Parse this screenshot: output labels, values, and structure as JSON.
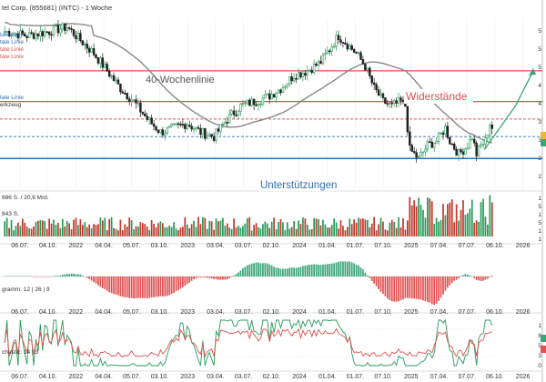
{
  "header": {
    "title": "tel Corp. (855681) (INTC) - 1 Woche"
  },
  "legend": {
    "items": [
      {
        "label": "tale Linie",
        "color": "#2f6fb5"
      },
      {
        "label": "tale Linie",
        "color": "#2f6fb5"
      },
      {
        "label": "tale Linie",
        "color": "#e05050"
      },
      {
        "label": "tale Linie",
        "color": "#e05050"
      }
    ],
    "lower_items": [
      {
        "label": "tale Linie",
        "color": "#2f6fb5"
      },
      {
        "label": "erkzeug",
        "color": "#333333"
      }
    ]
  },
  "chart_data": {
    "type": "candlestick",
    "annotations": {
      "ma_label": "40-Wochenlinie",
      "resistance_label": "Widerstände",
      "support_label": "Unterstützungen"
    },
    "x_ticks": [
      "06.07.",
      "04.10.",
      "2022",
      "04.04.",
      "05.07.",
      "03.10.",
      "2023",
      "03.04.",
      "03.07.",
      "02.10.",
      "2024",
      "01.04.",
      "01.07.",
      "07.10.",
      "2025",
      "07.04.",
      "07.07.",
      "06.10.",
      "2026"
    ],
    "bottom_ticks": [
      "06.07.",
      "04.10.",
      "2022",
      "04.04.",
      "05.07.",
      "03.10.",
      "2023",
      "03.04.",
      "03.07.",
      "02.10.",
      "2024",
      "01.04.",
      "01.07.",
      "07.10.",
      "2025",
      "07.04.",
      "07.07.",
      "06.10.",
      "2026"
    ],
    "y_range": [
      17,
      56
    ],
    "levels": {
      "resistance_top": 44,
      "resistance_mid": 37,
      "dashed_red": 33,
      "dashed_blue": 29,
      "support": 24
    },
    "projection": [
      [
        54,
        26
      ],
      [
        57.5,
        36
      ],
      [
        59.5,
        44
      ]
    ],
    "ma_note": "40-week moving average",
    "colors": {
      "up": "#2a9a5a",
      "down": "#222222",
      "ma": "#888888",
      "red": "#e05050",
      "blue": "#2f6fb5",
      "teal": "#3aa57a"
    },
    "volume": {
      "label": "686 S. / 20,6 Mrd.",
      "sub_label": "843 S."
    },
    "macd": {
      "label": "gramm: 12 | 26 | 9"
    },
    "stochastic": {
      "label": "chastic: 14 | 3"
    },
    "right_axis_price": [
      "5",
      "5",
      "5",
      "4",
      "4",
      "3",
      "3",
      "2",
      "2"
    ],
    "right_axis_volume": [
      "1",
      "5",
      "1",
      "5",
      "1",
      "1"
    ],
    "right_axis_stoch": [
      "1",
      "8",
      "5",
      "3",
      "0"
    ]
  }
}
